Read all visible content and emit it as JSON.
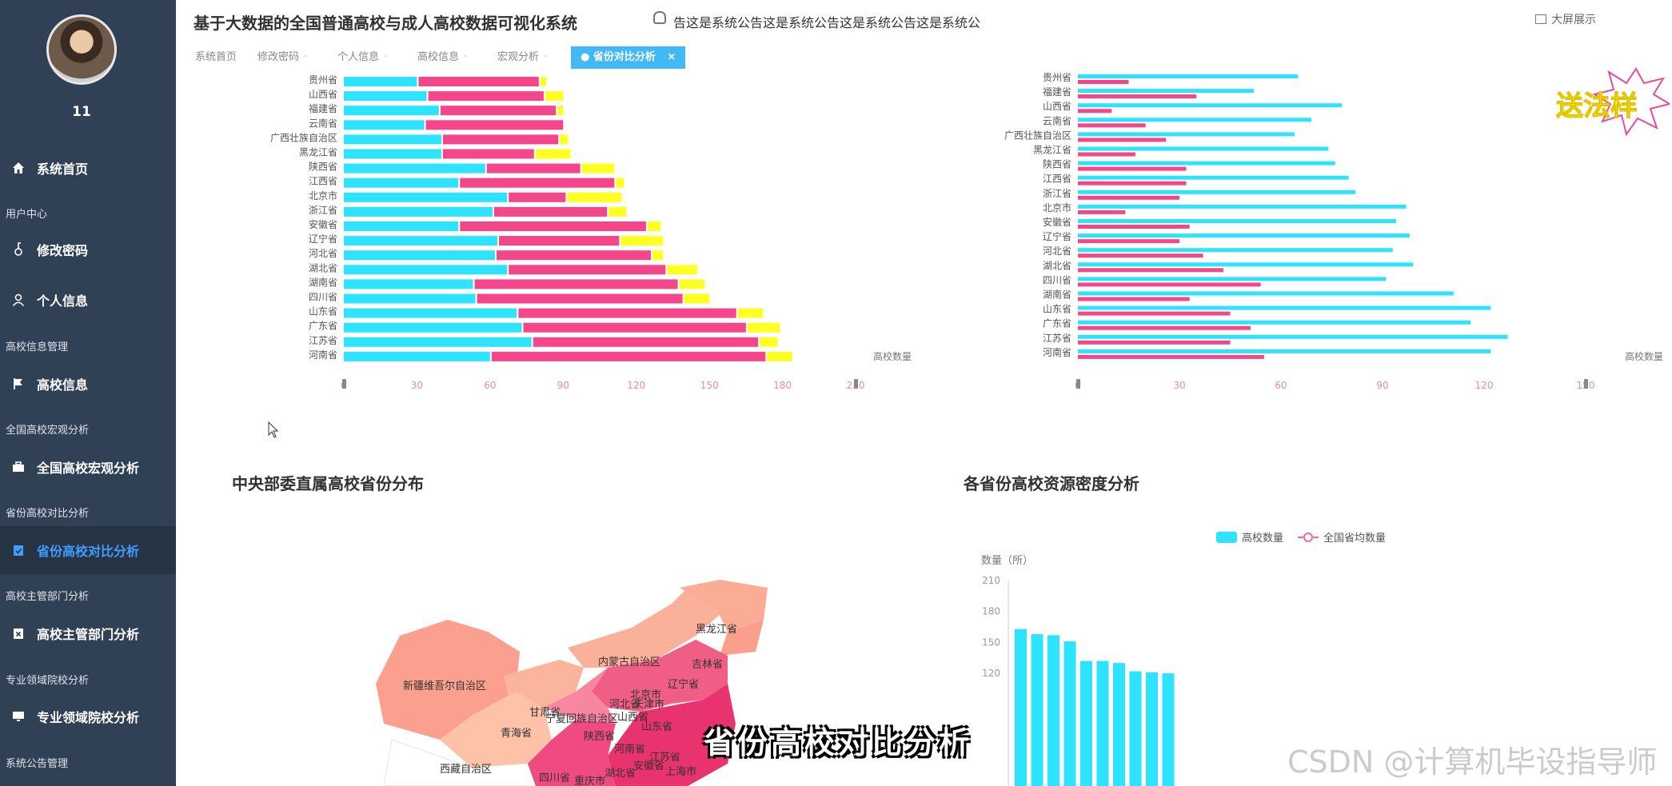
{
  "header": {
    "title": "基于大数据的全国普通高校与成人高校数据可视化系统",
    "notice": "告这是系统公告这是系统公告这是系统公告这是系统公",
    "bigscreen_label": "大屏展示",
    "user": "11"
  },
  "sidebar": {
    "username": "11",
    "groups": {
      "user_center": "用户中心",
      "school_mgmt": "高校信息管理",
      "macro": "全国高校宏观分析",
      "province": "省份高校对比分析",
      "dept": "高校主管部门分析",
      "field": "专业领域院校分析",
      "notice": "系统公告管理"
    },
    "items": {
      "home": "系统首页",
      "password": "修改密码",
      "profile": "个人信息",
      "school_info": "高校信息",
      "macro_analysis": "全国高校宏观分析",
      "province_compare": "省份高校对比分析",
      "dept_analysis": "高校主管部门分析",
      "field_analysis": "专业领域院校分析"
    }
  },
  "tags": [
    "系统首页",
    "修改密码",
    "个人信息",
    "高校信息",
    "宏观分析",
    "省份对比分析"
  ],
  "panels": {
    "central_map_title": "中央部委直属高校省份分布",
    "density_title": "各省份高校资源密度分析"
  },
  "overlay_caption": "省份高校对比分析",
  "sticker_text": "送法样",
  "watermark": "CSDN @计算机毕设指导师",
  "colors": {
    "cyan": "#2ee3ff",
    "pink": "#f5468b",
    "yellow": "#ffff21",
    "sidebar": "#304156",
    "active": "#409eff"
  },
  "chart_data": [
    {
      "type": "bar",
      "orientation": "horizontal",
      "stacked": true,
      "categories": [
        "贵州省",
        "山西省",
        "福建省",
        "云南省",
        "广西壮族自治区",
        "黑龙江省",
        "陕西省",
        "江西省",
        "北京市",
        "浙江省",
        "安徽省",
        "辽宁省",
        "河北省",
        "湖北省",
        "湖南省",
        "四川省",
        "山东省",
        "广东省",
        "江苏省",
        "河南省"
      ],
      "series": [
        {
          "values": [
            30,
            34,
            39,
            33,
            40,
            40,
            58,
            47,
            67,
            61,
            47,
            63,
            62,
            67,
            53,
            54,
            71,
            73,
            77,
            60
          ]
        },
        {
          "values": [
            50,
            48,
            48,
            57,
            48,
            38,
            39,
            64,
            24,
            47,
            77,
            50,
            64,
            65,
            84,
            85,
            90,
            92,
            93,
            113
          ]
        },
        {
          "values": [
            3,
            8,
            3,
            0,
            4,
            15,
            14,
            4,
            23,
            8,
            6,
            18,
            5,
            13,
            11,
            11,
            11,
            14,
            8,
            11
          ]
        }
      ],
      "xlabel": "高校数量",
      "xticks": [
        0,
        30,
        60,
        90,
        120,
        150,
        180,
        210
      ],
      "xlim": [
        0,
        210
      ]
    },
    {
      "type": "bar",
      "orientation": "horizontal",
      "categories": [
        "贵州省",
        "福建省",
        "山西省",
        "云南省",
        "广西壮族自治区",
        "黑龙江省",
        "陕西省",
        "江西省",
        "浙江省",
        "北京市",
        "安徽省",
        "辽宁省",
        "河北省",
        "湖北省",
        "四川省",
        "湖南省",
        "山东省",
        "广东省",
        "江苏省",
        "河南省"
      ],
      "series": [
        {
          "values": [
            65,
            52,
            78,
            69,
            64,
            74,
            76,
            80,
            82,
            97,
            94,
            98,
            93,
            99,
            91,
            111,
            122,
            116,
            127,
            122
          ]
        },
        {
          "values": [
            15,
            35,
            10,
            20,
            26,
            17,
            32,
            32,
            30,
            14,
            33,
            30,
            37,
            43,
            54,
            33,
            45,
            51,
            45,
            55
          ]
        }
      ],
      "xlabel": "高校数量",
      "xticks": [
        0,
        30,
        60,
        90,
        120,
        150
      ],
      "xlim": [
        0,
        150
      ]
    },
    {
      "type": "map",
      "title": "中央部委直属高校省份分布",
      "labels": [
        "黑龙江省",
        "吉林省",
        "辽宁省",
        "内蒙古自治区",
        "新疆维吾尔自治区",
        "甘肃省",
        "宁夏回族自治区",
        "青海省",
        "陕西省",
        "山西省",
        "河南省",
        "山东省",
        "北京市",
        "天津市",
        "河北省",
        "江苏省",
        "安徽省",
        "湖北省",
        "四川省",
        "西藏自治区",
        "重庆市",
        "上海市"
      ]
    },
    {
      "type": "bar",
      "title": "各省份高校资源密度分析",
      "legend": [
        "高校数量",
        "全国省均数量"
      ],
      "ylabel": "数量（所）",
      "yticks": [
        120,
        150,
        180,
        210
      ],
      "ylim": [
        0,
        210
      ],
      "values": [
        163,
        158,
        157,
        151,
        132,
        132,
        130,
        122,
        121,
        120
      ]
    }
  ]
}
